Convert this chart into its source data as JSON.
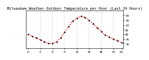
{
  "hours": [
    0,
    1,
    2,
    3,
    4,
    5,
    6,
    7,
    8,
    9,
    10,
    11,
    12,
    13,
    14,
    15,
    16,
    17,
    18,
    19,
    20,
    21,
    22,
    23
  ],
  "temps": [
    40,
    38,
    36,
    34,
    32,
    30,
    30,
    32,
    36,
    42,
    48,
    54,
    57,
    59,
    58,
    55,
    51,
    47,
    43,
    39,
    37,
    35,
    33,
    31
  ],
  "line_color": "#ff0000",
  "marker_color": "#000000",
  "bg_color": "#ffffff",
  "grid_color": "#aaaaaa",
  "title": "Milwaukee Weather Outdoor Temperature per Hour (Last 24 Hours)",
  "ylim_min": 25,
  "ylim_max": 65,
  "yticks": [
    30,
    35,
    40,
    45,
    50,
    55,
    60
  ],
  "ytick_labels": [
    "30",
    "35",
    "40",
    "45",
    "50",
    "55",
    "60"
  ],
  "xticks": [
    0,
    3,
    6,
    9,
    12,
    15,
    18,
    21,
    23
  ],
  "xtick_labels": [
    "0",
    "3",
    "6",
    "9",
    "12",
    "15",
    "18",
    "21",
    "23"
  ],
  "vgrid_x": [
    3,
    6,
    9,
    12,
    15,
    18,
    21
  ],
  "title_fontsize": 3.8,
  "tick_fontsize": 3.2,
  "line_width": 0.7,
  "marker_size": 1.2
}
